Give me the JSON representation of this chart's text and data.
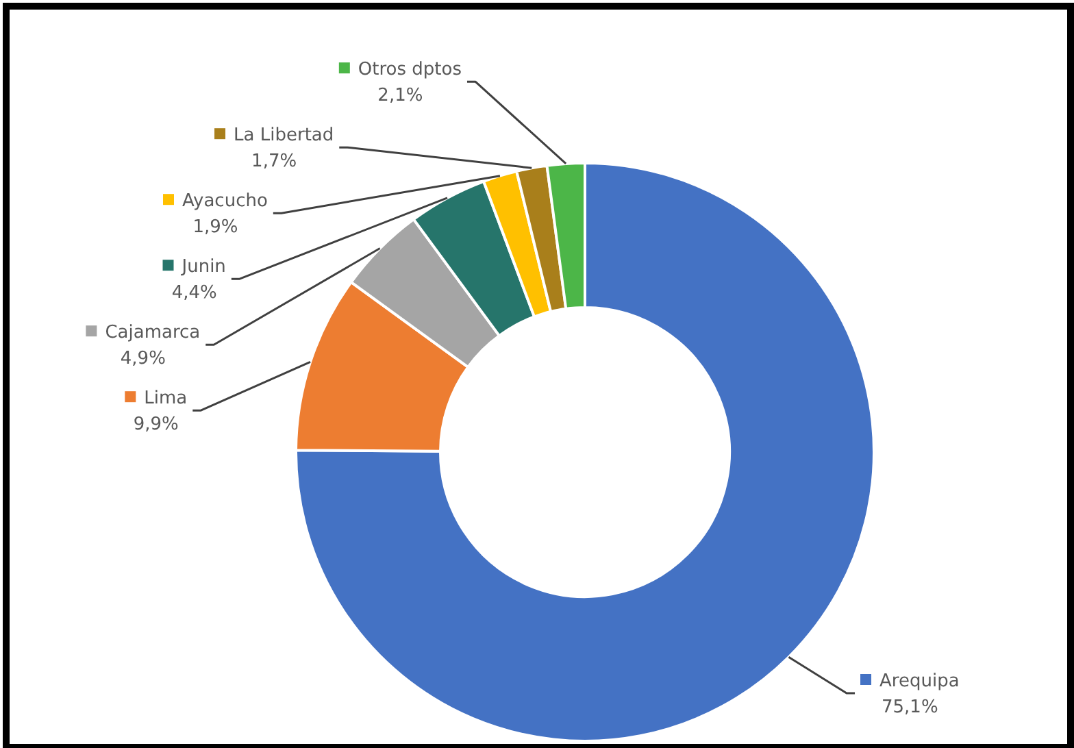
{
  "chart_data": {
    "type": "donut",
    "categories": [
      "Arequipa",
      "Lima",
      "Cajamarca",
      "Junin",
      "Ayacucho",
      "La Libertad",
      "Otros dptos"
    ],
    "values": [
      75.1,
      9.9,
      4.9,
      4.4,
      1.9,
      1.7,
      2.1
    ],
    "colors": [
      "#4472c4",
      "#ed7d31",
      "#a5a5a5",
      "#26756b",
      "#ffc000",
      "#a97f1b",
      "#4cb648"
    ],
    "value_labels": [
      "75,1%",
      "9,9%",
      "4,9%",
      "4,4%",
      "1,9%",
      "1,7%",
      "2,1%"
    ],
    "legend": "left"
  }
}
